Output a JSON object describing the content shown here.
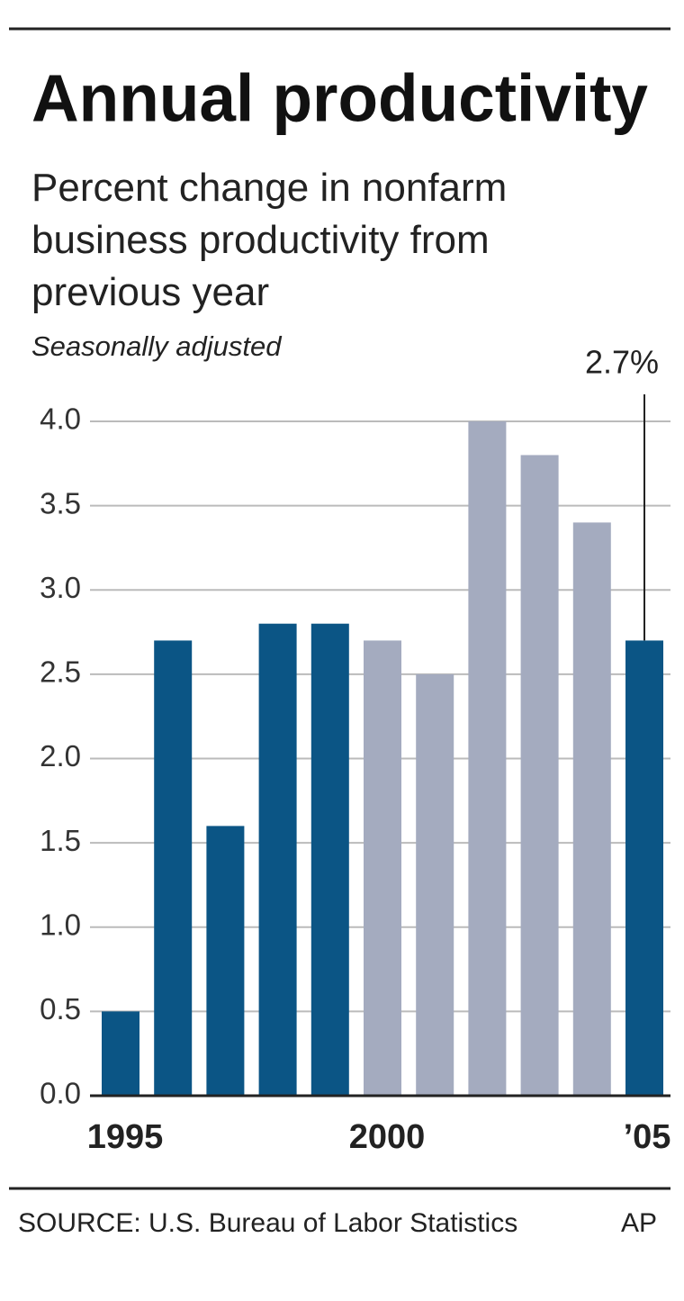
{
  "chart_data": {
    "type": "bar",
    "title": "Annual productivity",
    "subtitle": "Percent change in nonfarm business productivity from previous year",
    "note": "Seasonally adjusted",
    "annotation": "2.7%",
    "source": "SOURCE: U.S. Bureau of Labor Statistics",
    "credit": "AP",
    "categories": [
      "1995",
      null,
      null,
      null,
      null,
      "2000",
      null,
      null,
      null,
      null,
      "’05"
    ],
    "values": [
      0.5,
      2.7,
      1.6,
      2.8,
      2.8,
      2.7,
      2.5,
      4.0,
      3.8,
      3.4,
      2.7
    ],
    "colors": [
      "#0b5585",
      "#0b5585",
      "#0b5585",
      "#0b5585",
      "#0b5585",
      "#a4abbf",
      "#a4abbf",
      "#a4abbf",
      "#a4abbf",
      "#a4abbf",
      "#0b5585"
    ],
    "ylim": [
      0,
      4
    ],
    "yticks": [
      {
        "value": 0,
        "label": "0.0"
      },
      0.5,
      {
        "value": 1,
        "label": "1.0"
      },
      1.5,
      {
        "value": 2,
        "label": "2.0"
      },
      2.5,
      {
        "value": 3,
        "label": "3.0"
      },
      3.5,
      {
        "value": 4,
        "label": "4.0"
      }
    ],
    "grid": true
  }
}
